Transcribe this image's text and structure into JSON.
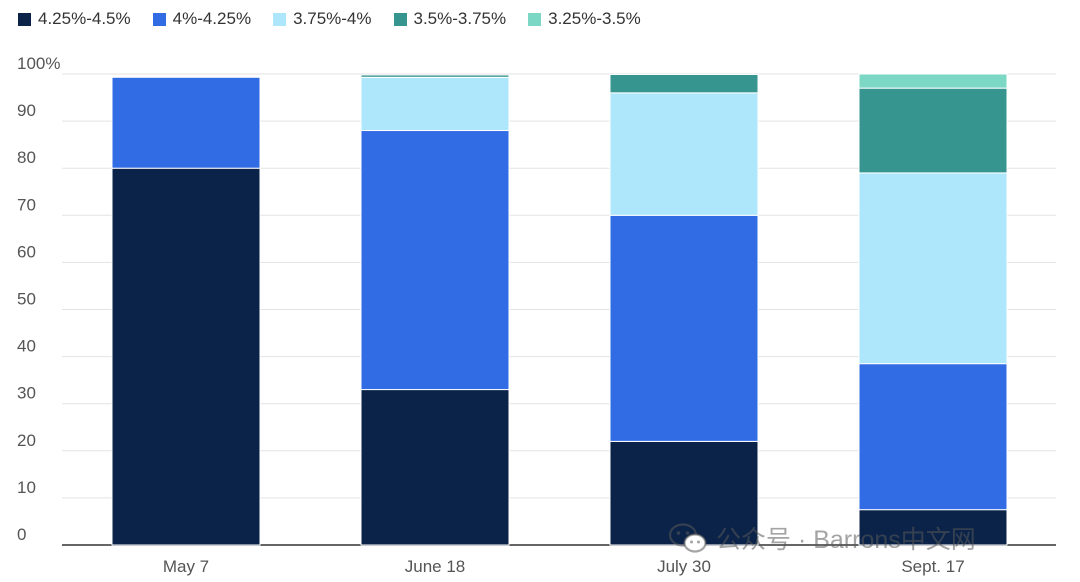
{
  "chart_data": {
    "type": "bar",
    "stacked": true,
    "categories": [
      "May 7",
      "June 18",
      "July 30",
      "Sept. 17"
    ],
    "series": [
      {
        "name": "4.25%-4.5%",
        "color": "#0b2348",
        "values": [
          80,
          33,
          22,
          7.5
        ]
      },
      {
        "name": "4%-4.25%",
        "color": "#316ce5",
        "values": [
          19.3,
          55,
          48,
          31
        ]
      },
      {
        "name": "3.75%-4%",
        "color": "#aee7fc",
        "values": [
          0,
          11.3,
          26,
          40.5
        ]
      },
      {
        "name": "3.5%-3.75%",
        "color": "#36958f",
        "values": [
          0,
          0.5,
          3.9,
          18
        ]
      },
      {
        "name": "3.25%-3.5%",
        "color": "#7cd8c4",
        "values": [
          0,
          0,
          0,
          3
        ]
      }
    ],
    "ylim": [
      0,
      100
    ],
    "yticks": [
      0,
      10,
      20,
      30,
      40,
      50,
      60,
      70,
      80,
      90,
      100
    ],
    "ytick_labels": [
      "0",
      "10",
      "20",
      "30",
      "40",
      "50",
      "60",
      "70",
      "80",
      "90",
      "100%"
    ],
    "legend_position": "top-left",
    "grid": true
  },
  "watermark": {
    "icon": "wechat-icon",
    "text": "公众号 · Barrons中文网"
  }
}
